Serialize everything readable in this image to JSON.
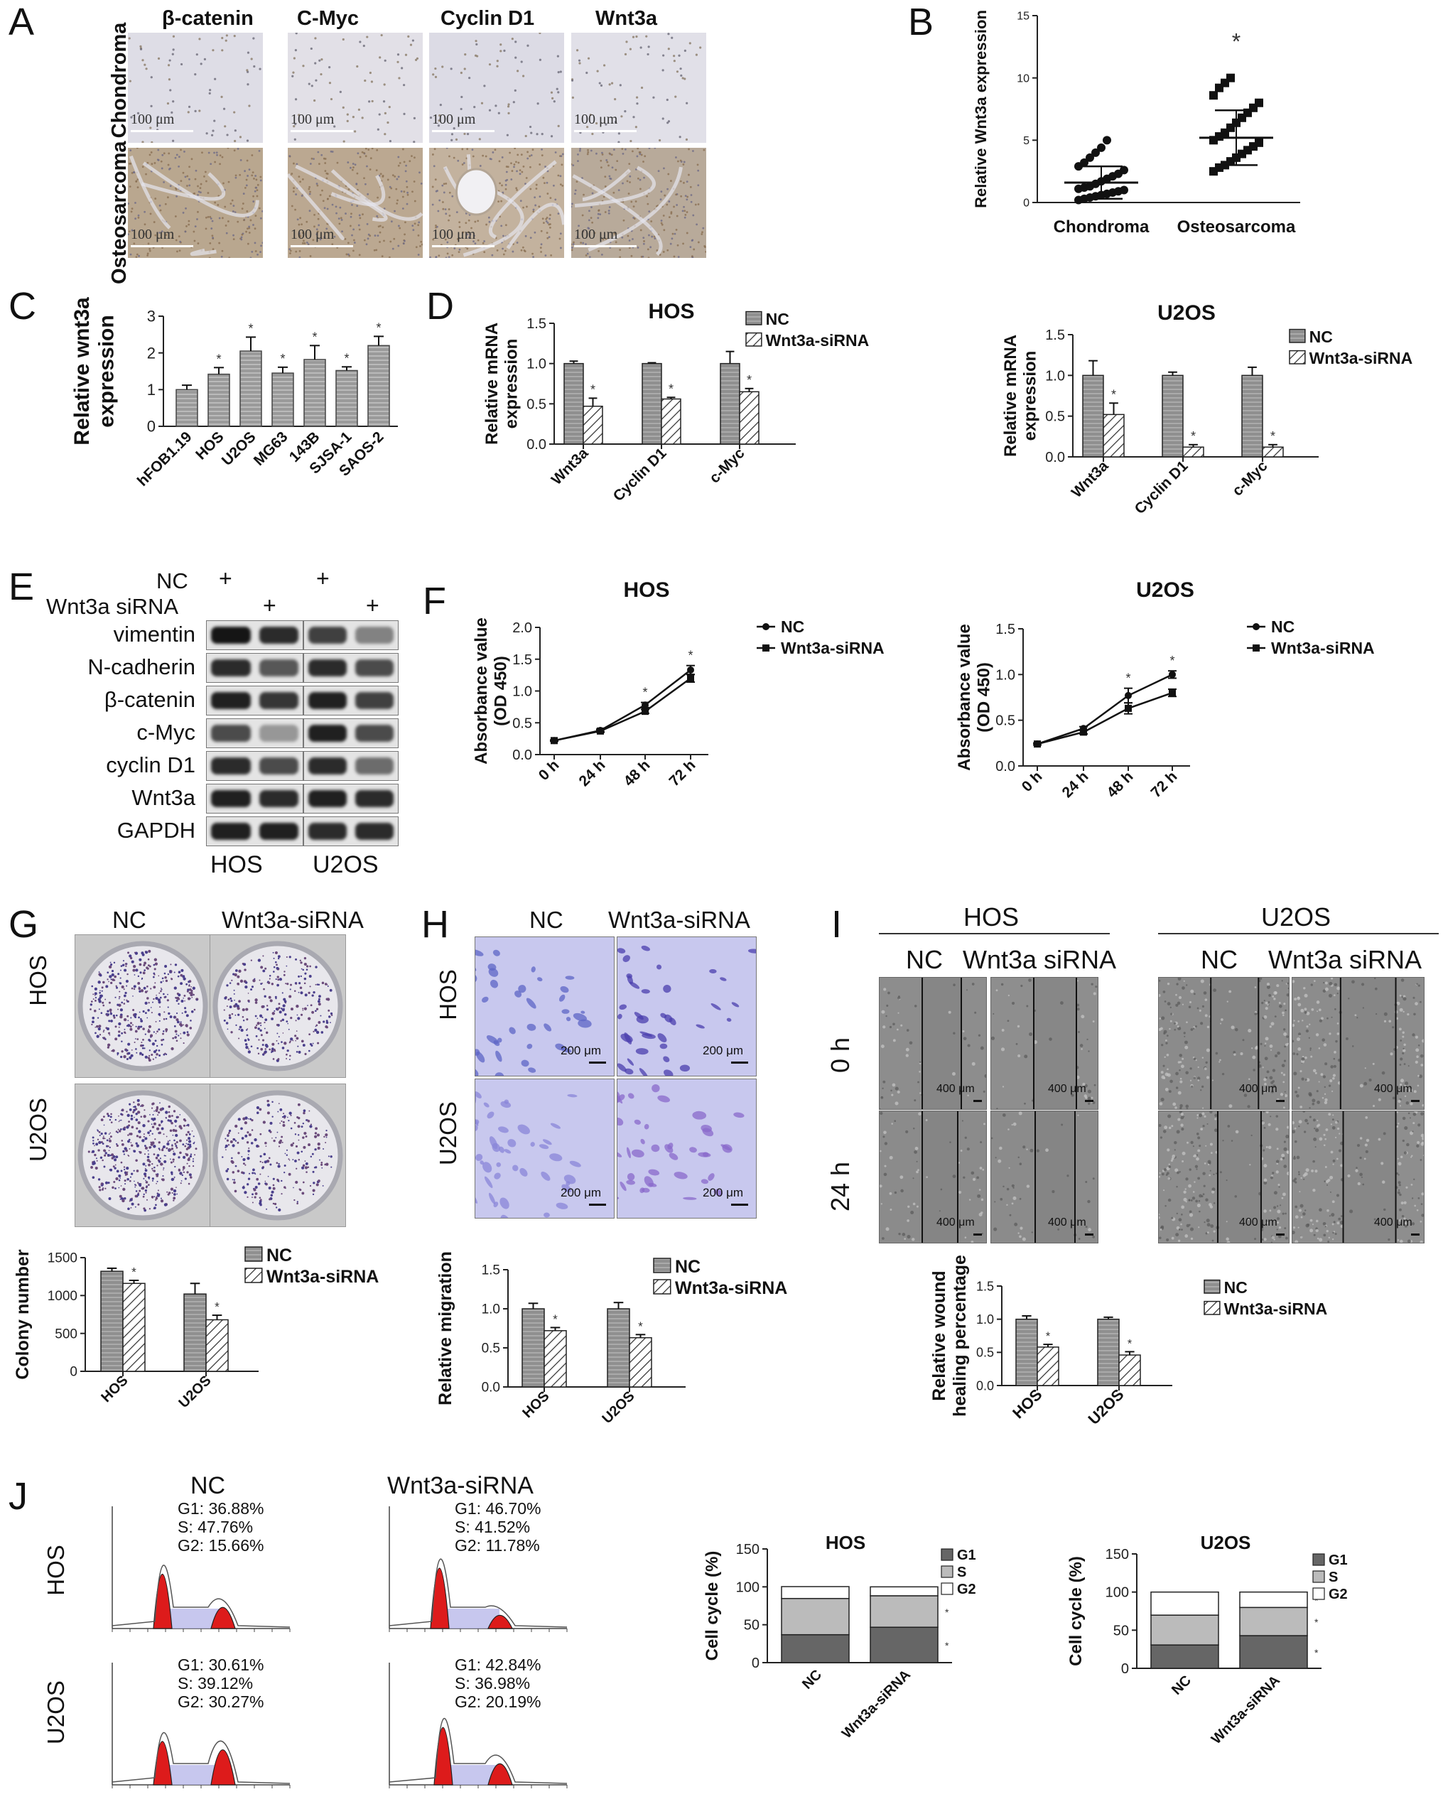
{
  "panels": {
    "A": {
      "letter": "A",
      "columns": [
        "β-catenin",
        "C-Myc",
        "Cyclin D1",
        "Wnt3a"
      ],
      "rows": [
        "Chondroma",
        "Osteosarcoma"
      ],
      "scalebar": "100 μm"
    },
    "B": {
      "letter": "B"
    },
    "C": {
      "letter": "C"
    },
    "D": {
      "letter": "D"
    },
    "E": {
      "letter": "E",
      "treat_rows": [
        "NC",
        "Wnt3a siRNA"
      ],
      "plus": "+",
      "proteins": [
        "vimentin",
        "N-cadherin",
        "β-catenin",
        "c-Myc",
        "cyclin D1",
        "Wnt3a",
        "GAPDH"
      ],
      "cells": [
        "HOS",
        "U2OS"
      ]
    },
    "F": {
      "letter": "F"
    },
    "G": {
      "letter": "G",
      "cols": [
        "NC",
        "Wnt3a-siRNA"
      ],
      "rows": [
        "HOS",
        "U2OS"
      ]
    },
    "H": {
      "letter": "H",
      "cols": [
        "NC",
        "Wnt3a-siRNA"
      ],
      "rows": [
        "HOS",
        "U2OS"
      ],
      "scalebar": "200 μm"
    },
    "I": {
      "letter": "I",
      "groups": [
        "HOS",
        "U2OS"
      ],
      "cols": [
        "NC",
        "Wnt3a siRNA"
      ],
      "rows": [
        "0 h",
        "24 h"
      ],
      "scalebar": "400 μm"
    },
    "J": {
      "letter": "J",
      "cols": [
        "NC",
        "Wnt3a-siRNA"
      ],
      "rows": [
        "HOS",
        "U2OS"
      ],
      "flow_texts": [
        [
          "G1: 36.88%",
          "S: 47.76%",
          "G2: 15.66%"
        ],
        [
          "G1: 46.70%",
          "S: 41.52%",
          "G2: 11.78%"
        ],
        [
          "G1: 30.61%",
          "S: 39.12%",
          "G2: 30.27%"
        ],
        [
          "G1: 42.84%",
          "S: 36.98%",
          "G2: 20.19%"
        ]
      ]
    }
  },
  "chart_data": [
    {
      "id": "B",
      "type": "scatter",
      "title": "",
      "xlabel": "",
      "ylabel": "Relative Wnt3a expression",
      "categories": [
        "Chondroma",
        "Osteosarcoma"
      ],
      "ylim": [
        0,
        15
      ],
      "yticks": [
        0,
        5,
        10,
        15
      ],
      "means": [
        1.6,
        5.2
      ],
      "sd": [
        1.3,
        2.2
      ],
      "series": [
        {
          "name": "Chondroma",
          "values": [
            0.2,
            0.3,
            0.4,
            0.5,
            0.6,
            0.7,
            0.8,
            0.9,
            1.0,
            1.1,
            1.2,
            1.3,
            1.5,
            1.7,
            1.9,
            2.1,
            2.3,
            2.6,
            2.9,
            3.2,
            3.6,
            4.0,
            4.4,
            5.0
          ]
        },
        {
          "name": "Osteosarcoma",
          "values": [
            2.5,
            2.8,
            3.0,
            3.3,
            3.6,
            3.9,
            4.2,
            4.5,
            4.8,
            5.0,
            5.3,
            5.6,
            6.0,
            6.4,
            6.8,
            7.2,
            7.6,
            8.0,
            8.6,
            9.2,
            9.6,
            10.0
          ]
        }
      ],
      "annotations": [
        "*"
      ]
    },
    {
      "id": "C",
      "type": "bar",
      "ylabel": "Relative wnt3a expression",
      "categories": [
        "hFOB1.19",
        "HOS",
        "U2OS",
        "MG63",
        "143B",
        "SJSA-1",
        "SAOS-2"
      ],
      "values": [
        1.0,
        1.42,
        2.05,
        1.45,
        1.82,
        1.52,
        2.2
      ],
      "errors": [
        0.12,
        0.18,
        0.38,
        0.16,
        0.38,
        0.1,
        0.25
      ],
      "sig": [
        false,
        true,
        true,
        true,
        true,
        true,
        true
      ],
      "ylim": [
        0,
        3
      ],
      "yticks": [
        0,
        1,
        2,
        3
      ]
    },
    {
      "id": "D-HOS",
      "type": "bar",
      "title": "HOS",
      "ylabel": "Relative mRNA expression",
      "categories": [
        "Wnt3a",
        "Cyclin D1",
        "c-Myc"
      ],
      "series": [
        {
          "name": "NC",
          "values": [
            1.0,
            1.0,
            1.0
          ],
          "errors": [
            0.03,
            0.01,
            0.15
          ]
        },
        {
          "name": "Wnt3a-siRNA",
          "values": [
            0.47,
            0.56,
            0.65
          ],
          "errors": [
            0.1,
            0.02,
            0.04
          ]
        }
      ],
      "ylim": [
        0,
        1.5
      ],
      "yticks": [
        0.0,
        0.5,
        1.0,
        1.5
      ]
    },
    {
      "id": "D-U2OS",
      "type": "bar",
      "title": "U2OS",
      "ylabel": "Relative mRNA expression",
      "categories": [
        "Wnt3a",
        "Cyclin D1",
        "c-Myc"
      ],
      "series": [
        {
          "name": "NC",
          "values": [
            1.0,
            1.0,
            1.0
          ],
          "errors": [
            0.18,
            0.04,
            0.1
          ]
        },
        {
          "name": "Wnt3a-siRNA",
          "values": [
            0.52,
            0.12,
            0.12
          ],
          "errors": [
            0.14,
            0.03,
            0.03
          ]
        }
      ],
      "ylim": [
        0,
        1.5
      ],
      "yticks": [
        0.0,
        0.5,
        1.0,
        1.5
      ]
    },
    {
      "id": "F-HOS",
      "type": "line",
      "title": "HOS",
      "ylabel": "Absorbance value (OD 450)",
      "x": [
        "0 h",
        "24 h",
        "48 h",
        "72 h"
      ],
      "series": [
        {
          "name": "NC",
          "values": [
            0.22,
            0.38,
            0.78,
            1.33
          ],
          "errors": [
            0.01,
            0.02,
            0.04,
            0.07
          ]
        },
        {
          "name": "Wnt3a-siRNA",
          "values": [
            0.22,
            0.37,
            0.68,
            1.2
          ],
          "errors": [
            0.01,
            0.02,
            0.03,
            0.06
          ]
        }
      ],
      "ylim": [
        0,
        2.0
      ],
      "yticks": [
        0.0,
        0.5,
        1.0,
        1.5,
        2.0
      ]
    },
    {
      "id": "F-U2OS",
      "type": "line",
      "title": "U2OS",
      "ylabel": "Absorbance value (OD 450)",
      "x": [
        "0 h",
        "24 h",
        "48 h",
        "72 h"
      ],
      "series": [
        {
          "name": "NC",
          "values": [
            0.24,
            0.41,
            0.77,
            1.0
          ],
          "errors": [
            0.01,
            0.02,
            0.08,
            0.04
          ]
        },
        {
          "name": "Wnt3a-siRNA",
          "values": [
            0.24,
            0.37,
            0.63,
            0.8
          ],
          "errors": [
            0.01,
            0.02,
            0.06,
            0.04
          ]
        }
      ],
      "ylim": [
        0,
        1.5
      ],
      "yticks": [
        0.0,
        0.5,
        1.0,
        1.5
      ]
    },
    {
      "id": "G",
      "type": "bar",
      "ylabel": "Colony number",
      "categories": [
        "HOS",
        "U2OS"
      ],
      "series": [
        {
          "name": "NC",
          "values": [
            1320,
            1020
          ],
          "errors": [
            40,
            140
          ]
        },
        {
          "name": "Wnt3a-siRNA",
          "values": [
            1160,
            680
          ],
          "errors": [
            40,
            60
          ]
        }
      ],
      "ylim": [
        0,
        1500
      ],
      "yticks": [
        0,
        500,
        1000,
        1500
      ]
    },
    {
      "id": "H",
      "type": "bar",
      "ylabel": "Relative migration",
      "categories": [
        "HOS",
        "U2OS"
      ],
      "series": [
        {
          "name": "NC",
          "values": [
            1.0,
            1.0
          ],
          "errors": [
            0.07,
            0.08
          ]
        },
        {
          "name": "Wnt3a-siRNA",
          "values": [
            0.72,
            0.63
          ],
          "errors": [
            0.04,
            0.04
          ]
        }
      ],
      "ylim": [
        0,
        1.5
      ],
      "yticks": [
        0.0,
        0.5,
        1.0,
        1.5
      ]
    },
    {
      "id": "I",
      "type": "bar",
      "ylabel": "Relative wound healing percentage",
      "categories": [
        "HOS",
        "U2OS"
      ],
      "series": [
        {
          "name": "NC",
          "values": [
            1.0,
            1.0
          ],
          "errors": [
            0.05,
            0.03
          ]
        },
        {
          "name": "Wnt3a-siRNA",
          "values": [
            0.58,
            0.46
          ],
          "errors": [
            0.04,
            0.05
          ]
        }
      ],
      "ylim": [
        0,
        1.5
      ],
      "yticks": [
        0.0,
        0.5,
        1.0,
        1.5
      ]
    },
    {
      "id": "J-HOS",
      "type": "bar",
      "title": "HOS",
      "ylabel": "Cell cycle (%)",
      "categories": [
        "NC",
        "Wnt3a-siRNA"
      ],
      "series": [
        {
          "name": "G1",
          "values": [
            36.88,
            46.7
          ]
        },
        {
          "name": "S",
          "values": [
            47.76,
            41.52
          ]
        },
        {
          "name": "G2",
          "values": [
            15.66,
            11.78
          ]
        }
      ],
      "stacked": true,
      "ylim": [
        0,
        150
      ],
      "yticks": [
        0,
        50,
        100,
        150
      ]
    },
    {
      "id": "J-U2OS",
      "type": "bar",
      "title": "U2OS",
      "ylabel": "Cell cycle (%)",
      "categories": [
        "NC",
        "Wnt3a-siRNA"
      ],
      "series": [
        {
          "name": "G1",
          "values": [
            30.61,
            42.84
          ]
        },
        {
          "name": "S",
          "values": [
            39.12,
            36.98
          ]
        },
        {
          "name": "G2",
          "values": [
            30.27,
            20.19
          ]
        }
      ],
      "stacked": true,
      "ylim": [
        0,
        150
      ],
      "yticks": [
        0,
        50,
        100,
        150
      ]
    }
  ]
}
